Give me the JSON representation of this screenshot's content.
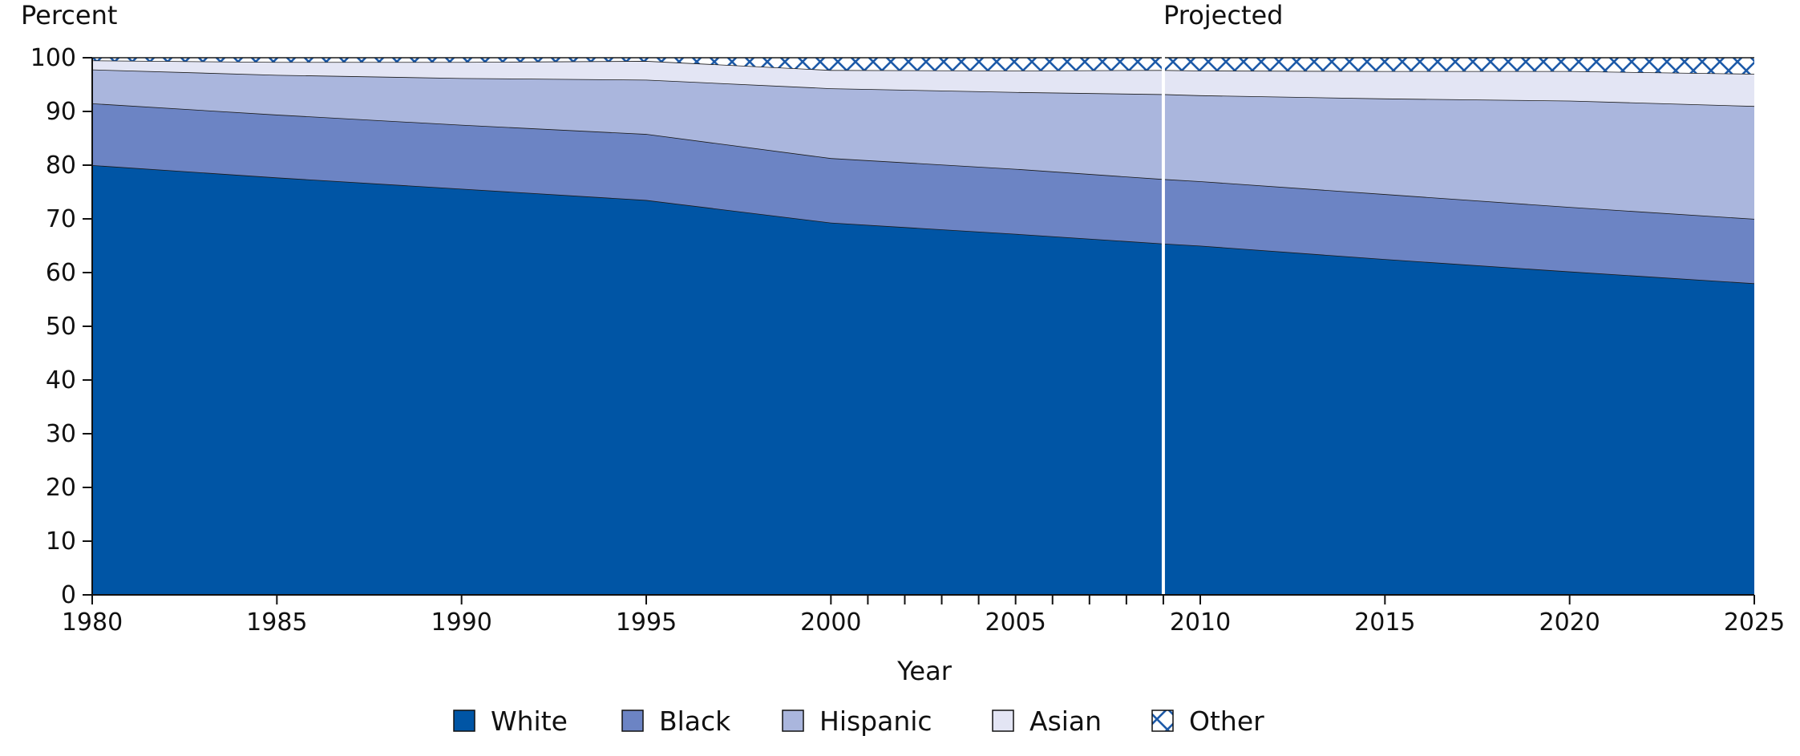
{
  "chart_data": {
    "type": "area",
    "stacked": true,
    "ylabel": "Percent",
    "xlabel": "Year",
    "annotation": "Projected",
    "projected_from": 2009,
    "xlim": [
      1980,
      2025
    ],
    "ylim": [
      0,
      100
    ],
    "x_ticks": [
      1980,
      1985,
      1990,
      1995,
      2000,
      2005,
      2010,
      2015,
      2020,
      2025
    ],
    "x_minor_ticks": [
      2001,
      2002,
      2003,
      2004,
      2006,
      2007,
      2008,
      2009
    ],
    "y_ticks": [
      0,
      10,
      20,
      30,
      40,
      50,
      60,
      70,
      80,
      90,
      100
    ],
    "legend_position": "bottom",
    "x": [
      1980,
      1985,
      1990,
      1995,
      2000,
      2005,
      2009,
      2010,
      2015,
      2020,
      2025
    ],
    "series": [
      {
        "name": "White",
        "color": "#0055a5",
        "values": [
          80.0,
          77.7,
          75.6,
          73.5,
          69.3,
          67.2,
          65.4,
          65.0,
          62.5,
          60.2,
          58.0
        ]
      },
      {
        "name": "Black",
        "color": "#6c84c4",
        "values": [
          11.5,
          11.7,
          11.9,
          12.3,
          12.0,
          12.1,
          12.0,
          12.0,
          12.1,
          12.0,
          12.0
        ]
      },
      {
        "name": "Hispanic",
        "color": "#aab6dd",
        "values": [
          6.3,
          7.4,
          8.7,
          10.1,
          13.0,
          14.3,
          15.8,
          16.0,
          17.8,
          19.8,
          21.0
        ]
      },
      {
        "name": "Asian",
        "color": "#e3e5f4",
        "values": [
          1.7,
          2.4,
          3.0,
          3.5,
          3.4,
          4.0,
          4.5,
          4.6,
          5.1,
          5.5,
          6.0
        ]
      },
      {
        "name": "Other",
        "color": "#ffffff",
        "pattern": "cross-hatch",
        "values": [
          0.5,
          0.8,
          0.8,
          0.6,
          2.3,
          2.4,
          2.3,
          2.4,
          2.5,
          2.5,
          3.0
        ]
      }
    ]
  }
}
